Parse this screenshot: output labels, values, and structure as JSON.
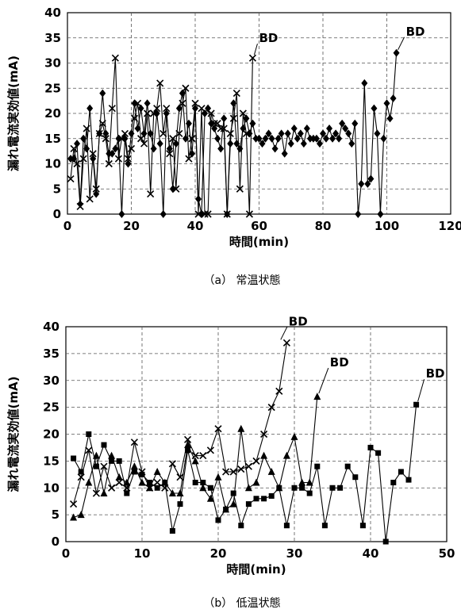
{
  "figure": {
    "caption_a": "（a） 常温状態",
    "caption_b": "（b） 低温状態"
  },
  "chart_data": [
    {
      "id": "a",
      "type": "line",
      "title": "",
      "xlabel": "時間(min)",
      "ylabel": "漏れ電流実効値(mA)",
      "xlim": [
        0,
        120
      ],
      "ylim": [
        0,
        40
      ],
      "xticks": [
        "0",
        "20",
        "40",
        "60",
        "80",
        "100",
        "120"
      ],
      "yticks": [
        "0",
        "5",
        "10",
        "15",
        "20",
        "25",
        "30",
        "35",
        "40"
      ],
      "grid": "dashed",
      "annotations": [
        {
          "text": "BD",
          "x": 58,
          "y": 31
        },
        {
          "text": "BD",
          "x": 103,
          "y": 32
        }
      ],
      "series": [
        {
          "marker": "x",
          "points": [
            [
              1,
              7
            ],
            [
              2,
              13
            ],
            [
              3,
              10
            ],
            [
              4,
              1.5
            ],
            [
              5,
              11
            ],
            [
              6,
              17
            ],
            [
              7,
              3
            ],
            [
              8,
              12
            ],
            [
              9,
              5
            ],
            [
              10,
              16
            ],
            [
              11,
              18
            ],
            [
              12,
              15
            ],
            [
              13,
              10
            ],
            [
              14,
              21
            ],
            [
              15,
              31
            ],
            [
              16,
              11
            ],
            [
              17,
              15
            ],
            [
              18,
              16
            ],
            [
              19,
              11
            ],
            [
              20,
              13
            ],
            [
              21,
              19
            ],
            [
              22,
              22
            ],
            [
              23,
              15
            ],
            [
              24,
              14
            ],
            [
              25,
              20
            ],
            [
              26,
              4
            ],
            [
              27,
              20
            ],
            [
              28,
              21
            ],
            [
              29,
              26
            ],
            [
              30,
              16
            ],
            [
              31,
              21
            ],
            [
              32,
              12
            ],
            [
              33,
              15
            ],
            [
              34,
              5
            ],
            [
              35,
              16
            ],
            [
              36,
              22
            ],
            [
              37,
              25
            ],
            [
              38,
              11
            ],
            [
              39,
              15
            ],
            [
              40,
              22
            ],
            [
              41,
              0
            ],
            [
              42,
              21
            ],
            [
              43,
              0
            ],
            [
              44,
              0
            ],
            [
              45,
              20
            ],
            [
              46,
              18
            ],
            [
              47,
              18
            ],
            [
              48,
              17
            ],
            [
              49,
              17
            ],
            [
              50,
              0
            ],
            [
              51,
              16
            ],
            [
              52,
              19
            ],
            [
              53,
              24
            ],
            [
              54,
              5
            ],
            [
              55,
              20
            ],
            [
              56,
              16
            ],
            [
              57,
              0
            ],
            [
              58,
              31
            ]
          ]
        },
        {
          "marker": "diamond",
          "points": [
            [
              1,
              11
            ],
            [
              2,
              11
            ],
            [
              3,
              14
            ],
            [
              4,
              2
            ],
            [
              5,
              15
            ],
            [
              6,
              13
            ],
            [
              7,
              21
            ],
            [
              8,
              11
            ],
            [
              9,
              4
            ],
            [
              10,
              16
            ],
            [
              11,
              24
            ],
            [
              12,
              16
            ],
            [
              13,
              12
            ],
            [
              14,
              12
            ],
            [
              15,
              13
            ],
            [
              16,
              15
            ],
            [
              17,
              0
            ],
            [
              18,
              15
            ],
            [
              19,
              10
            ],
            [
              20,
              16
            ],
            [
              21,
              22
            ],
            [
              22,
              17
            ],
            [
              23,
              21
            ],
            [
              24,
              16
            ],
            [
              25,
              22
            ],
            [
              26,
              16
            ],
            [
              27,
              13
            ],
            [
              28,
              20
            ],
            [
              29,
              14
            ],
            [
              30,
              0
            ],
            [
              31,
              20
            ],
            [
              32,
              13
            ],
            [
              33,
              5
            ],
            [
              34,
              14
            ],
            [
              35,
              21
            ],
            [
              36,
              24
            ],
            [
              37,
              15
            ],
            [
              38,
              18
            ],
            [
              39,
              12
            ],
            [
              40,
              21
            ],
            [
              41,
              3
            ],
            [
              42,
              0
            ],
            [
              43,
              20
            ],
            [
              44,
              21
            ],
            [
              45,
              18
            ],
            [
              46,
              17
            ],
            [
              47,
              15
            ],
            [
              48,
              13
            ],
            [
              49,
              19
            ],
            [
              50,
              0
            ],
            [
              51,
              14
            ],
            [
              52,
              22
            ],
            [
              53,
              14
            ],
            [
              54,
              13
            ],
            [
              55,
              17
            ],
            [
              56,
              19
            ],
            [
              57,
              16
            ],
            [
              58,
              18
            ],
            [
              59,
              15
            ],
            [
              60,
              15
            ],
            [
              61,
              14
            ],
            [
              62,
              15
            ],
            [
              63,
              16
            ],
            [
              64,
              15
            ],
            [
              65,
              13
            ],
            [
              66,
              15
            ],
            [
              67,
              16
            ],
            [
              68,
              12
            ],
            [
              69,
              16
            ],
            [
              70,
              14
            ],
            [
              71,
              17
            ],
            [
              72,
              15
            ],
            [
              73,
              16
            ],
            [
              74,
              14
            ],
            [
              75,
              17
            ],
            [
              76,
              15
            ],
            [
              77,
              15
            ],
            [
              78,
              15
            ],
            [
              79,
              14
            ],
            [
              80,
              16
            ],
            [
              81,
              15
            ],
            [
              82,
              17
            ],
            [
              83,
              15
            ],
            [
              84,
              16
            ],
            [
              85,
              15
            ],
            [
              86,
              18
            ],
            [
              87,
              17
            ],
            [
              88,
              16
            ],
            [
              89,
              14
            ],
            [
              90,
              18
            ],
            [
              91,
              0
            ],
            [
              92,
              6
            ],
            [
              93,
              26
            ],
            [
              94,
              6
            ],
            [
              95,
              7
            ],
            [
              96,
              21
            ],
            [
              97,
              16
            ],
            [
              98,
              0
            ],
            [
              99,
              15
            ],
            [
              100,
              22
            ],
            [
              101,
              19
            ],
            [
              102,
              23
            ],
            [
              103,
              32
            ]
          ]
        }
      ]
    },
    {
      "id": "b",
      "type": "line",
      "title": "",
      "xlabel": "時間(min)",
      "ylabel": "漏れ電流実効値(mA)",
      "xlim": [
        0,
        50
      ],
      "ylim": [
        0,
        40
      ],
      "xticks": [
        "0",
        "10",
        "20",
        "30",
        "40",
        "50"
      ],
      "yticks": [
        "0",
        "5",
        "10",
        "15",
        "20",
        "25",
        "30",
        "35",
        "40"
      ],
      "grid": "dashed",
      "annotations": [
        {
          "text": "BD",
          "x": 28,
          "y": 37
        },
        {
          "text": "BD",
          "x": 33,
          "y": 27
        },
        {
          "text": "BD",
          "x": 46,
          "y": 25.5
        }
      ],
      "series": [
        {
          "marker": "x",
          "points": [
            [
              1,
              7
            ],
            [
              2,
              12
            ],
            [
              3,
              17
            ],
            [
              4,
              9
            ],
            [
              5,
              14
            ],
            [
              6,
              10
            ],
            [
              7,
              11
            ],
            [
              8,
              10
            ],
            [
              9,
              18.5
            ],
            [
              10,
              13
            ],
            [
              11,
              10
            ],
            [
              12,
              11
            ],
            [
              13,
              10
            ],
            [
              14,
              14.5
            ],
            [
              15,
              12
            ],
            [
              16,
              19
            ],
            [
              17,
              16
            ],
            [
              18,
              16
            ],
            [
              19,
              17
            ],
            [
              20,
              21
            ],
            [
              21,
              13
            ],
            [
              22,
              13
            ],
            [
              23,
              13.5
            ],
            [
              24,
              14
            ],
            [
              25,
              15
            ],
            [
              26,
              20
            ],
            [
              27,
              25
            ],
            [
              28,
              28
            ],
            [
              29,
              37
            ]
          ]
        },
        {
          "marker": "triangle",
          "points": [
            [
              1,
              4.5
            ],
            [
              2,
              5
            ],
            [
              3,
              11
            ],
            [
              4,
              16
            ],
            [
              5,
              9
            ],
            [
              6,
              16
            ],
            [
              7,
              12
            ],
            [
              8,
              11
            ],
            [
              9,
              14
            ],
            [
              10,
              11
            ],
            [
              11,
              10
            ],
            [
              12,
              13
            ],
            [
              13,
              11
            ],
            [
              14,
              9
            ],
            [
              15,
              9
            ],
            [
              16,
              18
            ],
            [
              17,
              15
            ],
            [
              18,
              10
            ],
            [
              19,
              8
            ],
            [
              20,
              12
            ],
            [
              21,
              6
            ],
            [
              22,
              7
            ],
            [
              23,
              21
            ],
            [
              24,
              10
            ],
            [
              25,
              11
            ],
            [
              26,
              16
            ],
            [
              27,
              13
            ],
            [
              28,
              10
            ],
            [
              29,
              16
            ],
            [
              30,
              19.5
            ],
            [
              31,
              11
            ],
            [
              32,
              11
            ],
            [
              33,
              27
            ]
          ]
        },
        {
          "marker": "square",
          "points": [
            [
              1,
              15.5
            ],
            [
              2,
              13
            ],
            [
              3,
              20
            ],
            [
              4,
              14
            ],
            [
              5,
              18
            ],
            [
              6,
              15
            ],
            [
              7,
              15
            ],
            [
              8,
              9
            ],
            [
              9,
              13
            ],
            [
              10,
              12.5
            ],
            [
              11,
              11
            ],
            [
              12,
              10
            ],
            [
              13,
              11
            ],
            [
              14,
              2
            ],
            [
              15,
              7
            ],
            [
              16,
              17
            ],
            [
              17,
              11
            ],
            [
              18,
              11
            ],
            [
              19,
              10
            ],
            [
              20,
              4
            ],
            [
              21,
              6
            ],
            [
              22,
              9
            ],
            [
              23,
              3
            ],
            [
              24,
              7
            ],
            [
              25,
              8
            ],
            [
              26,
              8
            ],
            [
              27,
              8.5
            ],
            [
              28,
              10
            ],
            [
              29,
              3
            ],
            [
              30,
              10
            ],
            [
              31,
              10
            ],
            [
              32,
              9
            ],
            [
              33,
              14
            ],
            [
              34,
              3
            ],
            [
              35,
              10
            ],
            [
              36,
              10
            ],
            [
              37,
              14
            ],
            [
              38,
              12
            ],
            [
              39,
              3
            ],
            [
              40,
              17.5
            ],
            [
              41,
              16.5
            ],
            [
              42,
              0
            ],
            [
              43,
              11
            ],
            [
              44,
              13
            ],
            [
              45,
              11.5
            ],
            [
              46,
              25.5
            ]
          ]
        }
      ]
    }
  ]
}
